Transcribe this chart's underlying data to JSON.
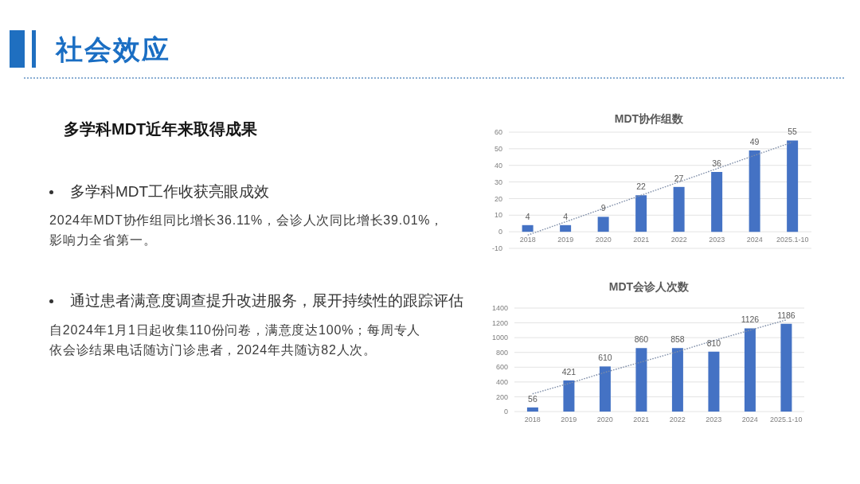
{
  "chart_data": [
    {
      "type": "other",
      "title": "社会效应",
      "subtitle": "多学科MDT近年来取得成果",
      "annotations": [
        "多学科MDT工作收获亮眼成效",
        "2024年MDT协作组同比增长36.11%，会诊人次同比增长39.01%，",
        "影响力全省第一。",
        "通过患者满意度调查提升改进服务，展开持续性的跟踪评估",
        "自2024年1月1日起收集110份问卷，满意度达100%；每周专人",
        "依会诊结果电话随访门诊患者，2024年共随访82人次。"
      ]
    },
    {
      "type": "bar",
      "title": "MDT协作组数",
      "categories": [
        "2018",
        "2019",
        "2020",
        "2021",
        "2022",
        "2023",
        "2024",
        "2025.1-10"
      ],
      "ylim": [
        -10,
        60
      ],
      "yticks": [
        -10,
        0,
        10,
        20,
        30,
        40,
        50,
        60
      ],
      "grid": "y",
      "series": [
        {
          "color": "#4472c4",
          "values": [
            4,
            4,
            9,
            22,
            27,
            36,
            49,
            55
          ],
          "value_labels": [
            "4",
            "4",
            "9",
            "22",
            "27",
            "36",
            "49",
            "55"
          ]
        },
        {
          "type": "line",
          "values": [
            -2,
            6,
            14,
            22,
            30,
            38,
            46,
            54
          ],
          "color": "#7f8ea8",
          "line_style": "dotted"
        }
      ]
    },
    {
      "type": "bar",
      "title": "MDT会诊人次数",
      "categories": [
        "2018",
        "2019",
        "2020",
        "2021",
        "2022",
        "2023",
        "2024",
        "2025.1-10"
      ],
      "ylim": [
        0,
        1400
      ],
      "yticks": [
        0,
        200,
        400,
        600,
        800,
        1000,
        1200,
        1400
      ],
      "grid": "y",
      "series": [
        {
          "color": "#4472c4",
          "values": [
            56,
            421,
            610,
            860,
            858,
            810,
            1126,
            1186
          ],
          "value_labels": [
            "56",
            "421",
            "610",
            "860",
            "858",
            "810",
            "1126",
            "1186"
          ]
        },
        {
          "type": "line",
          "values": [
            240,
            380,
            530,
            670,
            810,
            960,
            1100,
            1240
          ],
          "color": "#7f8ea8",
          "line_style": "dotted"
        }
      ]
    }
  ]
}
